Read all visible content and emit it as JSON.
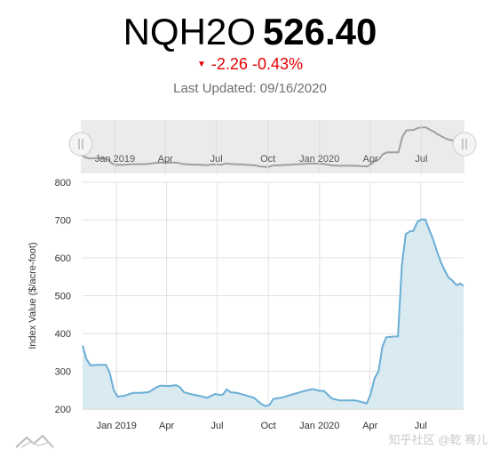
{
  "header": {
    "symbol": "NQH2O",
    "price": "526.40",
    "change": "-2.26",
    "change_pct": "-0.43%",
    "last_updated": "Last Updated: 09/16/2020"
  },
  "colors": {
    "line": "#6aaed6",
    "fill": "#d6e8f0",
    "down": "#e30000",
    "navigator": "#a0a0a0"
  },
  "watermark": "知乎社区 @乾 骞儿",
  "chart_data": {
    "type": "area",
    "ylabel": "Index Value ($/acre-foot)",
    "ylim": [
      200,
      800
    ],
    "yticks": [
      200,
      300,
      400,
      500,
      600,
      700,
      800
    ],
    "x_tick_labels": [
      "Jan 2019",
      "Apr",
      "Jul",
      "Oct",
      "Jan 2020",
      "Apr",
      "Jul"
    ],
    "x_tick_dates": [
      "2019-01-01",
      "2019-04-01",
      "2019-07-01",
      "2019-10-01",
      "2020-01-01",
      "2020-04-01",
      "2020-07-01"
    ],
    "x_range": [
      "2018-11-01",
      "2020-09-16"
    ],
    "series": [
      {
        "values": [
          [
            "2018-11-01",
            368
          ],
          [
            "2018-11-08",
            332
          ],
          [
            "2018-11-15",
            316
          ],
          [
            "2018-11-29",
            317
          ],
          [
            "2018-12-13",
            317
          ],
          [
            "2018-12-20",
            295
          ],
          [
            "2018-12-27",
            250
          ],
          [
            "2019-01-03",
            233
          ],
          [
            "2019-01-17",
            236
          ],
          [
            "2019-01-31",
            243
          ],
          [
            "2019-02-14",
            243
          ],
          [
            "2019-02-28",
            245
          ],
          [
            "2019-03-14",
            258
          ],
          [
            "2019-03-21",
            262
          ],
          [
            "2019-04-04",
            261
          ],
          [
            "2019-04-18",
            263
          ],
          [
            "2019-04-25",
            258
          ],
          [
            "2019-05-02",
            245
          ],
          [
            "2019-05-16",
            239
          ],
          [
            "2019-05-30",
            235
          ],
          [
            "2019-06-13",
            230
          ],
          [
            "2019-06-27",
            240
          ],
          [
            "2019-07-04",
            238
          ],
          [
            "2019-07-11",
            238
          ],
          [
            "2019-07-18",
            252
          ],
          [
            "2019-07-25",
            245
          ],
          [
            "2019-08-08",
            242
          ],
          [
            "2019-08-22",
            236
          ],
          [
            "2019-09-05",
            230
          ],
          [
            "2019-09-19",
            213
          ],
          [
            "2019-09-26",
            208
          ],
          [
            "2019-10-03",
            211
          ],
          [
            "2019-10-10",
            227
          ],
          [
            "2019-10-24",
            230
          ],
          [
            "2019-11-07",
            236
          ],
          [
            "2019-11-21",
            242
          ],
          [
            "2019-12-05",
            248
          ],
          [
            "2019-12-19",
            253
          ],
          [
            "2020-01-02",
            248
          ],
          [
            "2020-01-09",
            248
          ],
          [
            "2020-01-23",
            228
          ],
          [
            "2020-02-06",
            223
          ],
          [
            "2020-02-20",
            223
          ],
          [
            "2020-03-05",
            223
          ],
          [
            "2020-03-19",
            218
          ],
          [
            "2020-03-26",
            215
          ],
          [
            "2020-04-02",
            240
          ],
          [
            "2020-04-09",
            282
          ],
          [
            "2020-04-16",
            300
          ],
          [
            "2020-04-23",
            365
          ],
          [
            "2020-04-30",
            390
          ],
          [
            "2020-05-14",
            392
          ],
          [
            "2020-05-21",
            392
          ],
          [
            "2020-05-28",
            580
          ],
          [
            "2020-06-04",
            663
          ],
          [
            "2020-06-11",
            670
          ],
          [
            "2020-06-18",
            672
          ],
          [
            "2020-06-25",
            695
          ],
          [
            "2020-07-02",
            702
          ],
          [
            "2020-07-09",
            702
          ],
          [
            "2020-07-16",
            675
          ],
          [
            "2020-07-23",
            650
          ],
          [
            "2020-07-30",
            618
          ],
          [
            "2020-08-06",
            590
          ],
          [
            "2020-08-13",
            567
          ],
          [
            "2020-08-20",
            548
          ],
          [
            "2020-08-27",
            540
          ],
          [
            "2020-09-03",
            528
          ],
          [
            "2020-09-10",
            532
          ],
          [
            "2020-09-16",
            526
          ]
        ]
      }
    ],
    "navigator_tick_labels": [
      "Jan 2019",
      "Apr",
      "Jul",
      "Oct",
      "Jan 2020",
      "Apr",
      "Jul"
    ],
    "grid": true
  }
}
